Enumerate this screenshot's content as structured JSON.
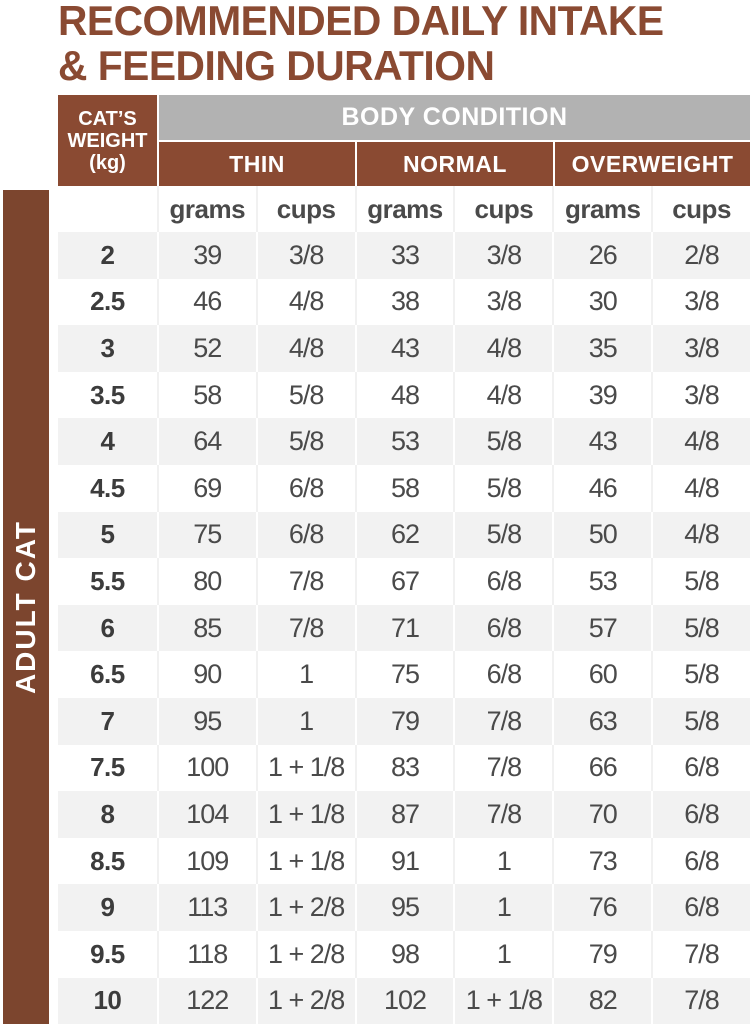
{
  "title": {
    "line1": "RECOMMENDED DAILY INTAKE",
    "line2": "& FEEDING DURATION"
  },
  "sidebar": {
    "label": "ADULT CAT"
  },
  "table": {
    "corner_header": {
      "line1": "CAT’S",
      "line2": "WEIGHT",
      "line3": "(kg)"
    },
    "group_header": "BODY CONDITION",
    "conditions": [
      "THIN",
      "NORMAL",
      "OVERWEIGHT"
    ],
    "unit_headers": [
      "grams",
      "cups",
      "grams",
      "cups",
      "grams",
      "cups"
    ],
    "columns": [
      "weight",
      "thin-grams",
      "thin-cups",
      "normal-grams",
      "normal-cups",
      "overweight-grams",
      "overweight-cups"
    ],
    "rows": [
      [
        "2",
        "39",
        "3/8",
        "33",
        "3/8",
        "26",
        "2/8"
      ],
      [
        "2.5",
        "46",
        "4/8",
        "38",
        "3/8",
        "30",
        "3/8"
      ],
      [
        "3",
        "52",
        "4/8",
        "43",
        "4/8",
        "35",
        "3/8"
      ],
      [
        "3.5",
        "58",
        "5/8",
        "48",
        "4/8",
        "39",
        "3/8"
      ],
      [
        "4",
        "64",
        "5/8",
        "53",
        "5/8",
        "43",
        "4/8"
      ],
      [
        "4.5",
        "69",
        "6/8",
        "58",
        "5/8",
        "46",
        "4/8"
      ],
      [
        "5",
        "75",
        "6/8",
        "62",
        "5/8",
        "50",
        "4/8"
      ],
      [
        "5.5",
        "80",
        "7/8",
        "67",
        "6/8",
        "53",
        "5/8"
      ],
      [
        "6",
        "85",
        "7/8",
        "71",
        "6/8",
        "57",
        "5/8"
      ],
      [
        "6.5",
        "90",
        "1",
        "75",
        "6/8",
        "60",
        "5/8"
      ],
      [
        "7",
        "95",
        "1",
        "79",
        "7/8",
        "63",
        "5/8"
      ],
      [
        "7.5",
        "100",
        "1 + 1/8",
        "83",
        "7/8",
        "66",
        "6/8"
      ],
      [
        "8",
        "104",
        "1 + 1/8",
        "87",
        "7/8",
        "70",
        "6/8"
      ],
      [
        "8.5",
        "109",
        "1 + 1/8",
        "91",
        "1",
        "73",
        "6/8"
      ],
      [
        "9",
        "113",
        "1 + 2/8",
        "95",
        "1",
        "76",
        "6/8"
      ],
      [
        "9.5",
        "118",
        "1 + 2/8",
        "98",
        "1",
        "79",
        "7/8"
      ],
      [
        "10",
        "122",
        "1 + 2/8",
        "102",
        "1 + 1/8",
        "82",
        "7/8"
      ]
    ]
  },
  "colors": {
    "brown": "#8A4A32",
    "sidebar_brown": "#7C452E",
    "gray_header": "#B2B2B2",
    "row_stripe": "#F2F2F2",
    "text_dark": "#4A4A4A"
  }
}
